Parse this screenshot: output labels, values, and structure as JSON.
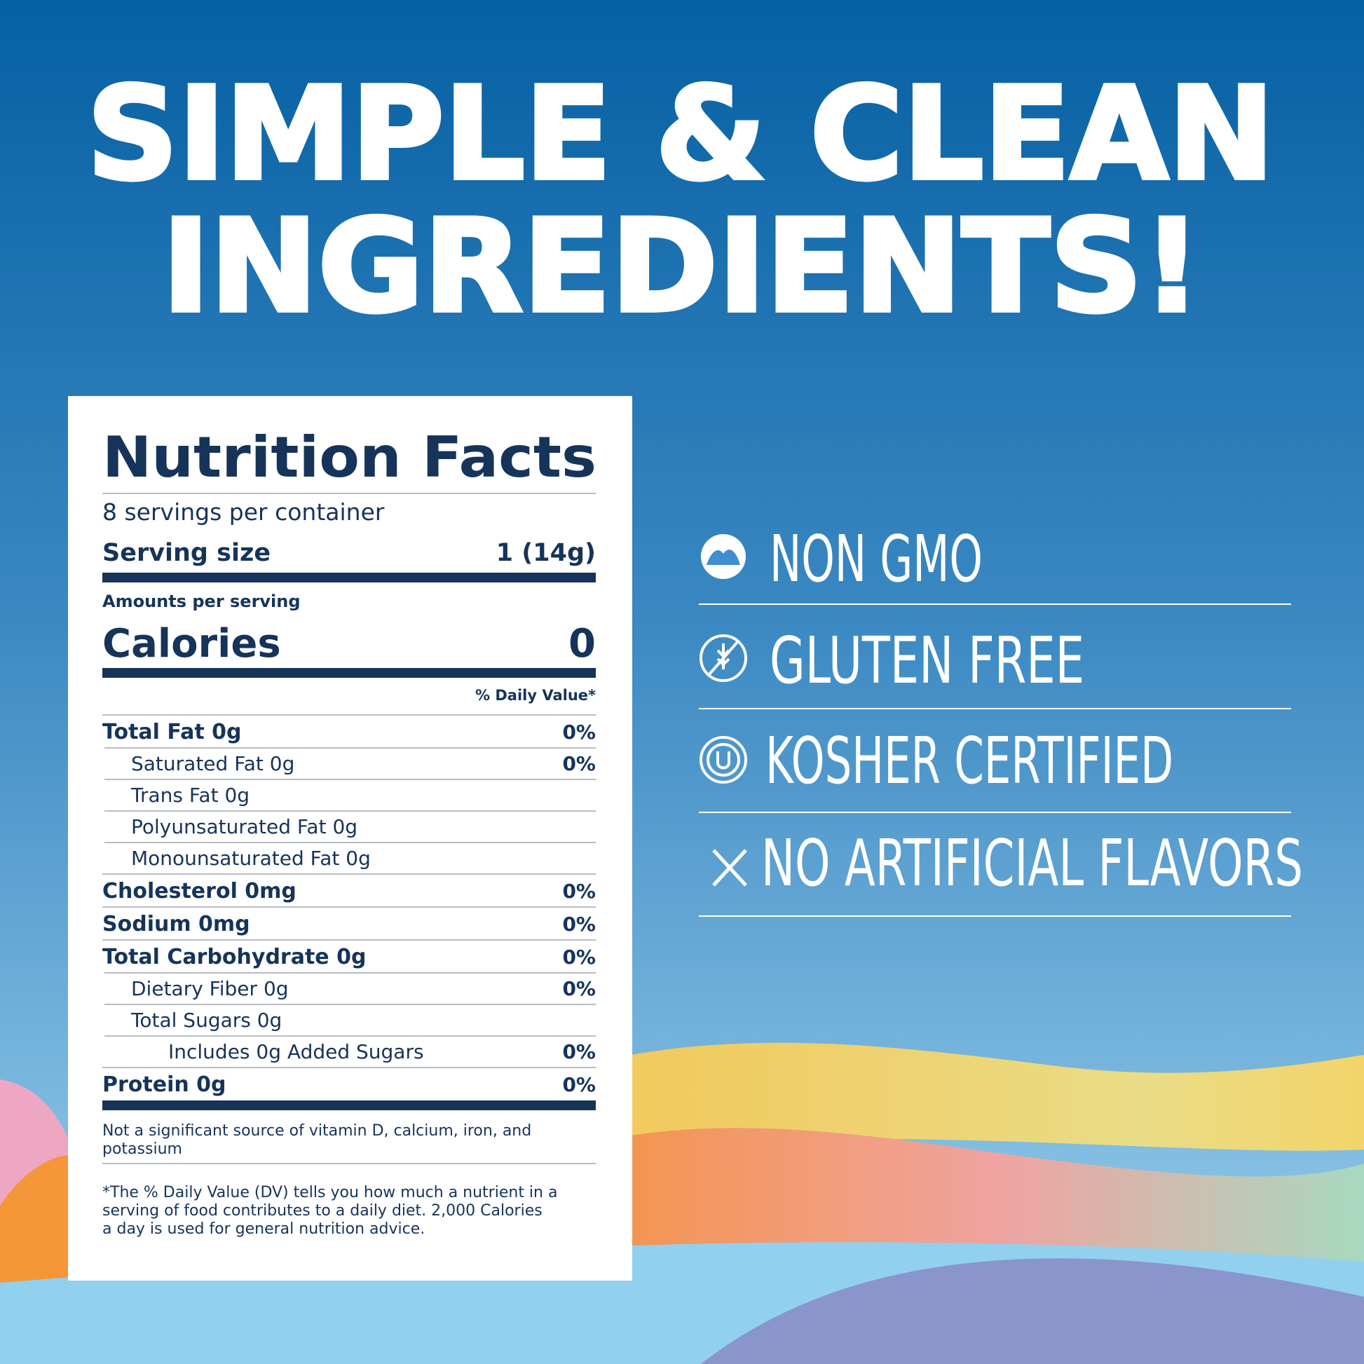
{
  "headline": [
    "SIMPLE & CLEAN",
    "INGREDIENTS!"
  ],
  "nutrition": {
    "title": "Nutrition Facts",
    "servings": "8 servings per container",
    "serving_size_label": "Serving size",
    "serving_size_value": "1 (14g)",
    "amounts_label": "Amounts per serving",
    "calories_label": "Calories",
    "calories_value": "0",
    "dv_header": "% Daily Value*",
    "rows": [
      {
        "label": "Total Fat 0g",
        "dv": "0%",
        "sub": [
          {
            "label": "Saturated Fat 0g",
            "dv": "0%"
          },
          {
            "label": "Trans Fat 0g"
          },
          {
            "label": "Polyunsaturated Fat 0g"
          },
          {
            "label": "Monounsaturated Fat 0g"
          }
        ]
      },
      {
        "label": "Cholesterol 0mg",
        "dv": "0%"
      },
      {
        "label": "Sodium 0mg",
        "dv": "0%"
      },
      {
        "label": "Total Carbohydrate 0g",
        "dv": "0%",
        "sub": [
          {
            "label": "Dietary Fiber 0g",
            "dv": "0%"
          },
          {
            "label": "Total Sugars 0g",
            "sub": [
              {
                "label": "Includes 0g Added Sugars",
                "dv": "0%"
              }
            ]
          }
        ]
      },
      {
        "label": "Protein 0g",
        "dv": "0%"
      }
    ],
    "footnotes": [
      [
        "Not a significant source of vitamin D, calcium, iron, and",
        "potassium"
      ],
      [
        "*The % Daily Value (DV) tells you how much a nutrient in a",
        "serving of food contributes to a daily diet. 2,000 Calories",
        "a day is used for general nutrition advice."
      ]
    ]
  },
  "features": [
    "NON GMO",
    "GLUTEN FREE",
    "KOSHER CERTIFIED",
    "NO ARTIFICIAL FLAVORS"
  ]
}
